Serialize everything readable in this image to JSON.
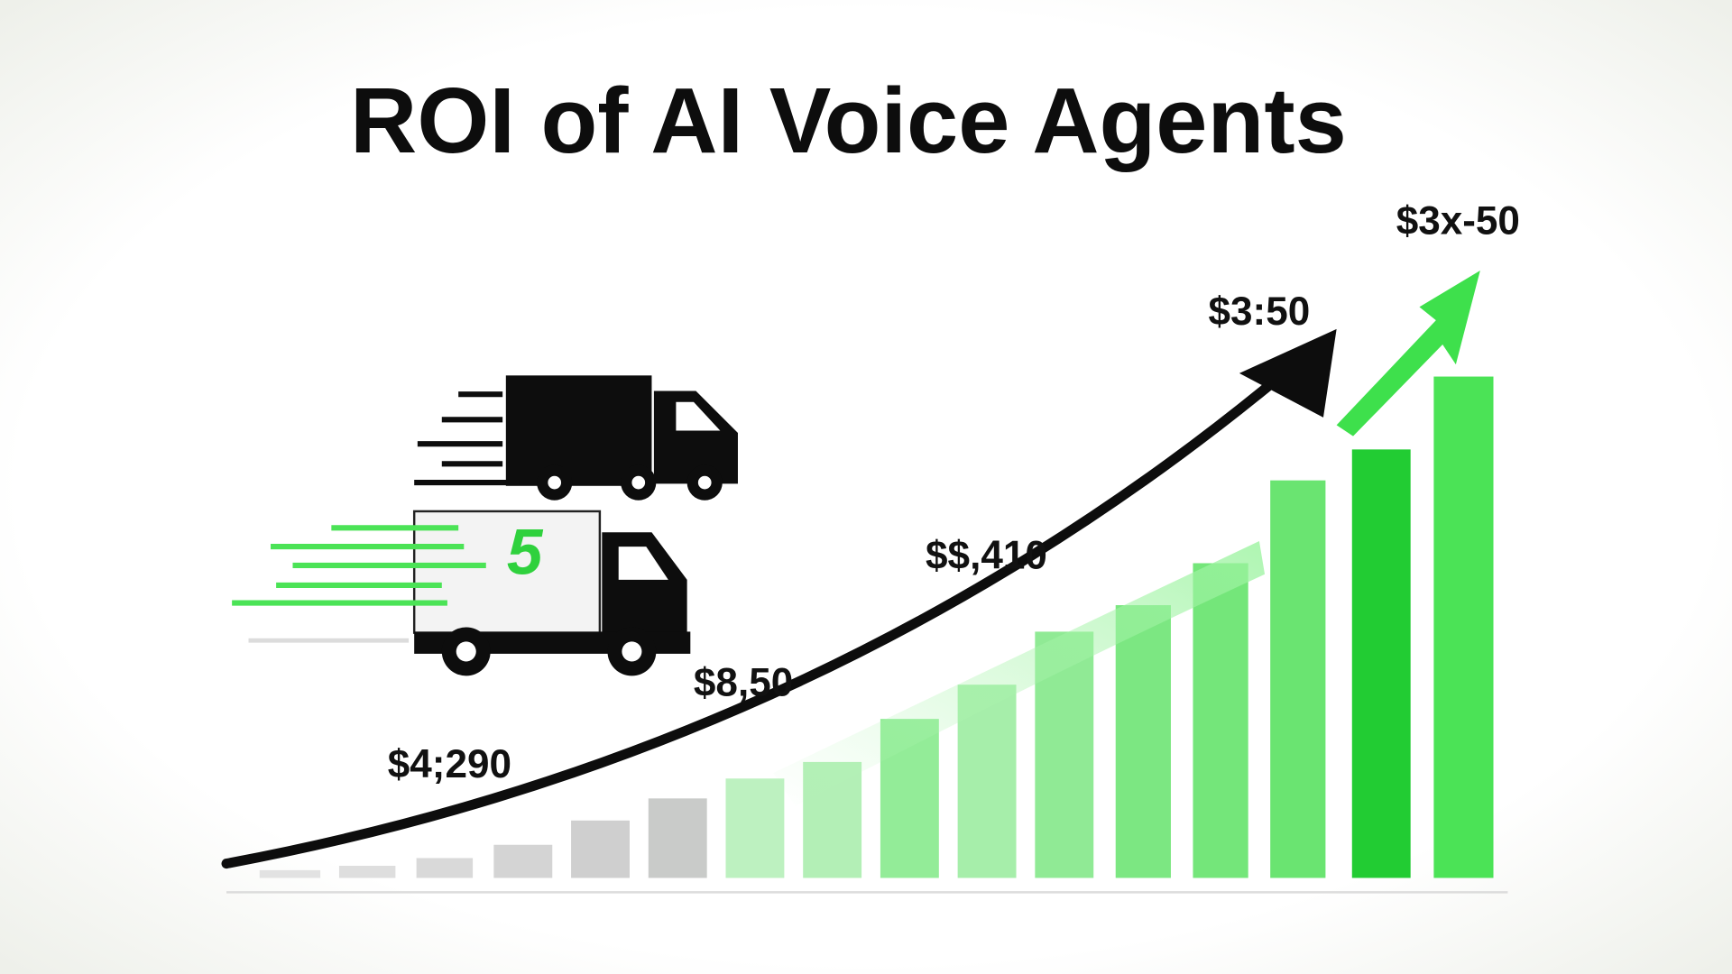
{
  "title": "ROI of AI Voice Agents",
  "labels": [
    "$3x-50",
    "$3:50",
    "$$,410",
    "$8,50",
    "$4;290"
  ],
  "truck_badge": "5"
}
